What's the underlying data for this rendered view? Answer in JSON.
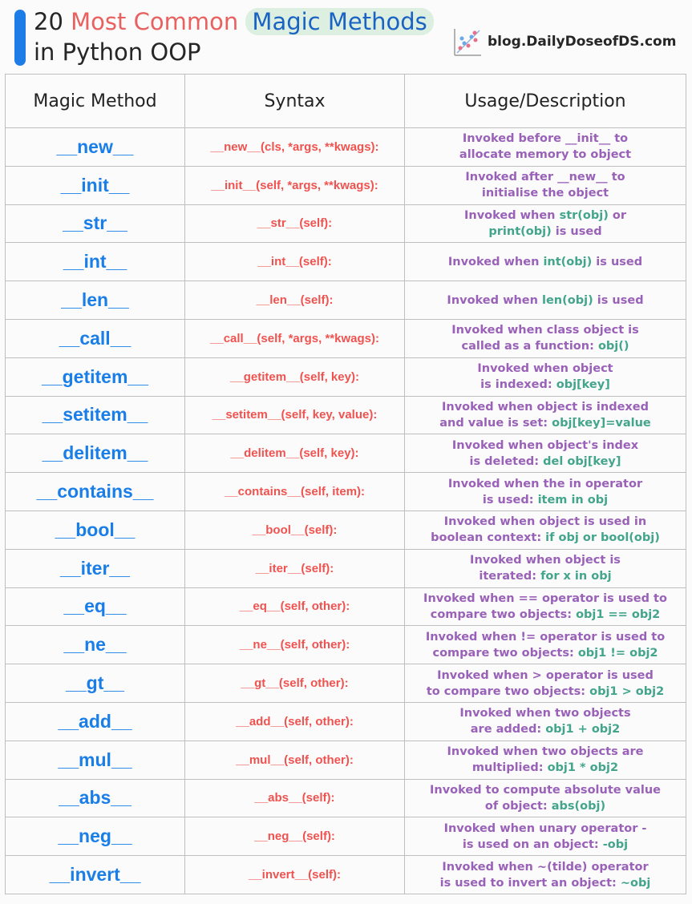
{
  "title": {
    "part1": "20 ",
    "part2": "Most Common",
    "part3": " ",
    "part4": "Magic Methods",
    "line2": "in Python OOP"
  },
  "brand": "blog.DailyDoseofDS.com",
  "colors": {
    "accent": "#1e7ce6",
    "method": "#1a7ee8",
    "syntax": "#ef5350",
    "desc": "#9a61b8",
    "code": "#43a58c"
  },
  "headers": [
    "Magic Method",
    "Syntax",
    "Usage/Description"
  ],
  "rows": [
    {
      "method": "__new__",
      "syntax": "__new__(cls, *args, **kwags):",
      "desc": [
        [
          "p",
          "Invoked before __init__ to"
        ],
        [
          "br",
          ""
        ],
        [
          "p",
          "allocate memory to object"
        ]
      ]
    },
    {
      "method": "__init__",
      "syntax": "__init__(self, *args, **kwags):",
      "desc": [
        [
          "p",
          "Invoked after __new__ to"
        ],
        [
          "br",
          ""
        ],
        [
          "p",
          "initialise the object"
        ]
      ]
    },
    {
      "method": "__str__",
      "syntax": "__str__(self):",
      "desc": [
        [
          "p",
          "Invoked when "
        ],
        [
          "g",
          "str(obj)"
        ],
        [
          "p",
          " or"
        ],
        [
          "br",
          ""
        ],
        [
          "g",
          "print(obj)"
        ],
        [
          "p",
          " is used"
        ]
      ]
    },
    {
      "method": "__int__",
      "syntax": "__int__(self):",
      "desc": [
        [
          "p",
          "Invoked when "
        ],
        [
          "g",
          "int(obj)"
        ],
        [
          "p",
          " is used"
        ]
      ]
    },
    {
      "method": "__len__",
      "syntax": "__len__(self):",
      "desc": [
        [
          "p",
          "Invoked when "
        ],
        [
          "g",
          "len(obj)"
        ],
        [
          "p",
          " is used"
        ]
      ]
    },
    {
      "method": "__call__",
      "syntax": "__call__(self, *args, **kwags):",
      "desc": [
        [
          "p",
          "Invoked when class object is"
        ],
        [
          "br",
          ""
        ],
        [
          "p",
          "called as a function: "
        ],
        [
          "g",
          "obj()"
        ]
      ]
    },
    {
      "method": "__getitem__",
      "syntax": "__getitem__(self, key):",
      "desc": [
        [
          "p",
          "Invoked when object"
        ],
        [
          "br",
          ""
        ],
        [
          "p",
          "is indexed: "
        ],
        [
          "g",
          "obj[key]"
        ]
      ]
    },
    {
      "method": "__setitem__",
      "syntax": "__setitem__(self, key, value):",
      "desc": [
        [
          "p",
          "Invoked when object is indexed"
        ],
        [
          "br",
          ""
        ],
        [
          "p",
          "and value is set: "
        ],
        [
          "g",
          "obj[key]=value"
        ]
      ]
    },
    {
      "method": "__delitem__",
      "syntax": "__delitem__(self, key):",
      "desc": [
        [
          "p",
          "Invoked when object's index"
        ],
        [
          "br",
          ""
        ],
        [
          "p",
          "is deleted: "
        ],
        [
          "g",
          "del obj[key]"
        ]
      ]
    },
    {
      "method": "__contains__",
      "syntax": "__contains__(self, item):",
      "desc": [
        [
          "p",
          "Invoked when the in operator"
        ],
        [
          "br",
          ""
        ],
        [
          "p",
          "is used: "
        ],
        [
          "g",
          "item in obj"
        ]
      ]
    },
    {
      "method": "__bool__",
      "syntax": "__bool__(self):",
      "desc": [
        [
          "p",
          "Invoked when object is used in"
        ],
        [
          "br",
          ""
        ],
        [
          "p",
          "boolean context: "
        ],
        [
          "g",
          "if obj or bool(obj)"
        ]
      ]
    },
    {
      "method": "__iter__",
      "syntax": "__iter__(self):",
      "desc": [
        [
          "p",
          "Invoked when object is"
        ],
        [
          "br",
          ""
        ],
        [
          "p",
          "iterated: "
        ],
        [
          "g",
          "for x in obj"
        ]
      ]
    },
    {
      "method": "__eq__",
      "syntax": "__eq__(self, other):",
      "desc": [
        [
          "p",
          "Invoked when == operator is used to"
        ],
        [
          "br",
          ""
        ],
        [
          "p",
          "compare two objects: "
        ],
        [
          "g",
          "obj1 == obj2"
        ]
      ]
    },
    {
      "method": "__ne__",
      "syntax": "__ne__(self, other):",
      "desc": [
        [
          "p",
          "Invoked when != operator is used to"
        ],
        [
          "br",
          ""
        ],
        [
          "p",
          "compare two objects: "
        ],
        [
          "g",
          "obj1 != obj2"
        ]
      ]
    },
    {
      "method": "__gt__",
      "syntax": "__gt__(self, other):",
      "desc": [
        [
          "p",
          "Invoked when > operator is used"
        ],
        [
          "br",
          ""
        ],
        [
          "p",
          "to compare two objects: "
        ],
        [
          "g",
          "obj1 > obj2"
        ]
      ]
    },
    {
      "method": "__add__",
      "syntax": "__add__(self, other):",
      "desc": [
        [
          "p",
          "Invoked when two objects"
        ],
        [
          "br",
          ""
        ],
        [
          "p",
          "are added: "
        ],
        [
          "g",
          "obj1 + obj2"
        ]
      ]
    },
    {
      "method": "__mul__",
      "syntax": "__mul__(self, other):",
      "desc": [
        [
          "p",
          "Invoked when two objects are"
        ],
        [
          "br",
          ""
        ],
        [
          "p",
          "multiplied: "
        ],
        [
          "g",
          "obj1 * obj2"
        ]
      ]
    },
    {
      "method": "__abs__",
      "syntax": "__abs__(self):",
      "desc": [
        [
          "p",
          "Invoked to compute absolute value"
        ],
        [
          "br",
          ""
        ],
        [
          "p",
          "of object: "
        ],
        [
          "g",
          "abs(obj)"
        ]
      ]
    },
    {
      "method": "__neg__",
      "syntax": "__neg__(self):",
      "desc": [
        [
          "p",
          "Invoked when unary operator -"
        ],
        [
          "br",
          ""
        ],
        [
          "p",
          "is used on an object: "
        ],
        [
          "g",
          "-obj"
        ]
      ]
    },
    {
      "method": "__invert__",
      "syntax": "__invert__(self):",
      "desc": [
        [
          "p",
          "Invoked when ~(tilde) operator"
        ],
        [
          "br",
          ""
        ],
        [
          "p",
          "is used to invert an object: "
        ],
        [
          "g",
          "~obj"
        ]
      ]
    }
  ]
}
